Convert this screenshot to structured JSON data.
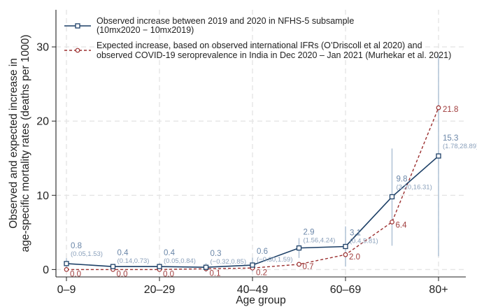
{
  "chart_data": {
    "type": "line",
    "xlabel": "Age group",
    "ylabel_lines": [
      "Observed and expected increase in",
      "age-specific mortality rates (deaths per 1000)"
    ],
    "x_tick_labels": [
      "0–9",
      "20–29",
      "40–49",
      "60–69",
      "80+"
    ],
    "y_ticks": [
      0,
      10,
      20,
      30
    ],
    "ylim": [
      -1,
      35
    ],
    "grid": true,
    "legend_position": "top-left",
    "colors": {
      "observed": "#1c3f66",
      "expected": "#9b2f2f",
      "ci": "#b5c6d8",
      "grid": "#e5e5e5"
    },
    "categories": [
      "0–9",
      "10–19",
      "20–29",
      "30–39",
      "40–49",
      "50–59",
      "60–69",
      "70–79",
      "80+"
    ],
    "series": [
      {
        "key": "observed",
        "name": "Observed increase between 2019 and 2020 in NFHS-5 subsample",
        "name_line2": "(10mx2020 − 10mx2019)",
        "values": [
          0.8,
          0.4,
          0.4,
          0.3,
          0.6,
          2.9,
          3.1,
          9.8,
          15.3
        ],
        "labels": [
          "0.8",
          "0.4",
          "0.4",
          "0.3",
          "0.6",
          "2.9",
          "3.1",
          "9.8",
          "15.3"
        ],
        "ci_low": [
          0.05,
          0.14,
          0.05,
          -0.32,
          -0.3,
          1.56,
          0.4,
          3.2,
          1.78
        ],
        "ci_high": [
          1.53,
          0.73,
          0.84,
          0.85,
          1.59,
          4.24,
          5.81,
          16.31,
          28.89
        ],
        "ci_labels": [
          "(0.05,1.53)",
          "(0.14,0.73)",
          "(0.05,0.84)",
          "(−0.32,0.85)",
          "(−0.30,1.59)",
          "(1.56,4.24)",
          "(0.4,5.81)",
          "(3.20,16.31)",
          "(1.78,28.89)"
        ]
      },
      {
        "key": "expected",
        "name": "Expected increase, based on observed international IFRs (O’Driscoll et al 2020) and",
        "name_line2": "observed COVID-19 seroprevalence in India in Dec 2020 – Jan 2021 (Murhekar et al. 2021)",
        "values": [
          0.0,
          0.0,
          0.0,
          0.1,
          0.2,
          0.7,
          2.0,
          6.4,
          21.8
        ],
        "labels": [
          "0.0",
          "0.0",
          "0.0",
          "0.1",
          "0.2",
          "0.7",
          "2.0",
          "6.4",
          "21.8"
        ]
      }
    ]
  }
}
